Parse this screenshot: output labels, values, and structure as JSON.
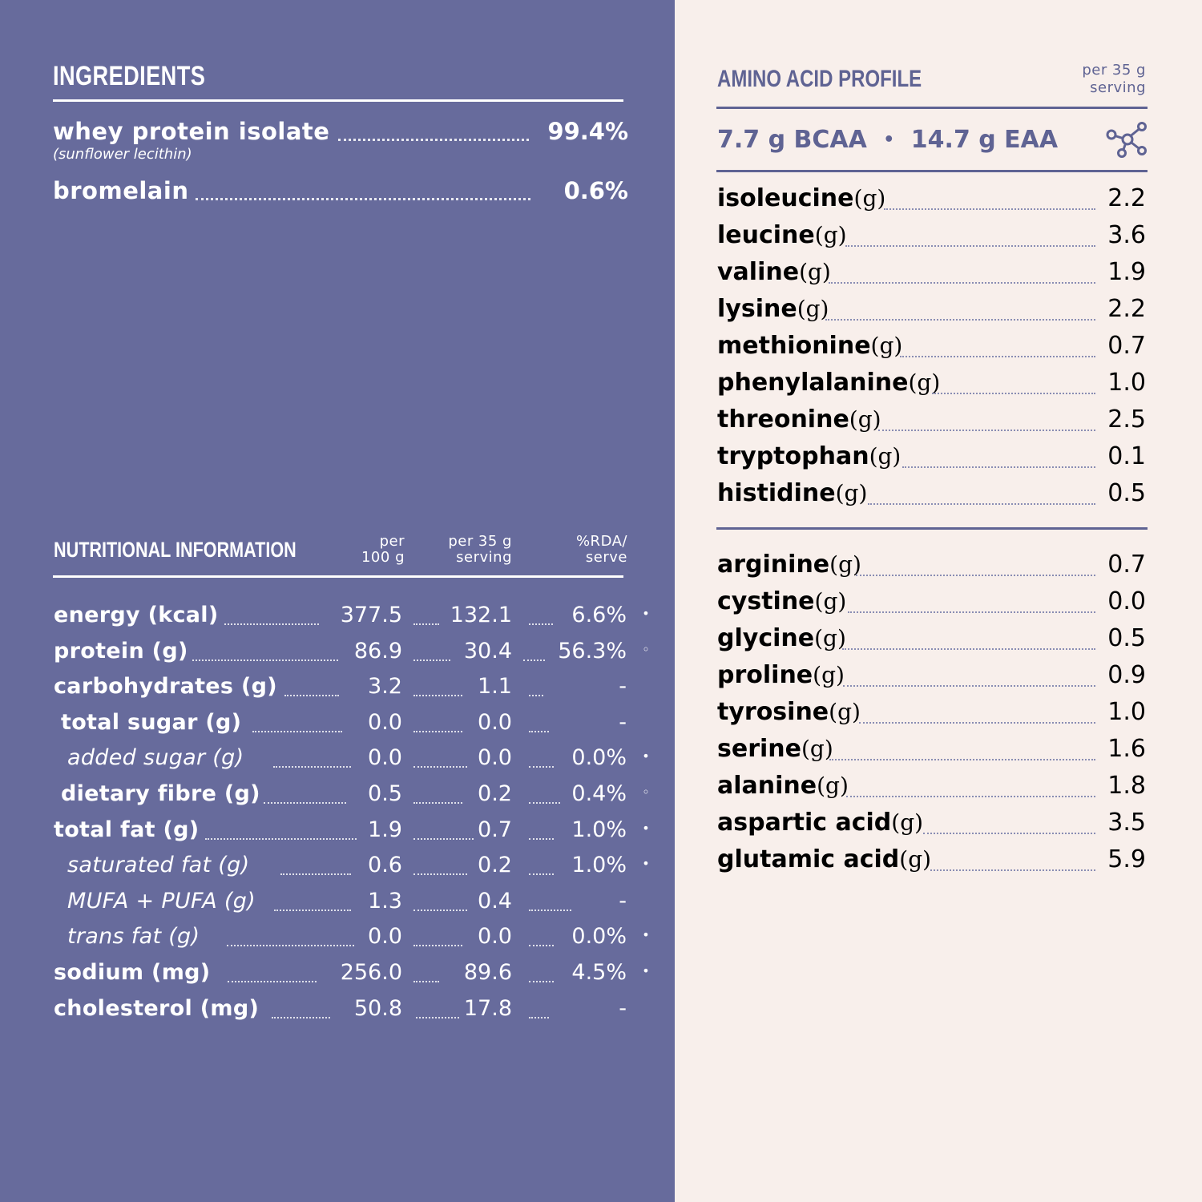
{
  "ingredients": {
    "title": "INGREDIENTS",
    "items": [
      {
        "label": "whey protein isolate",
        "note": "(sunflower lecithin)",
        "value": "99.4%"
      },
      {
        "label": "bromelain",
        "value": "0.6%"
      }
    ]
  },
  "nutrition": {
    "title": "NUTRITIONAL INFORMATION",
    "columns": [
      {
        "line1": "per",
        "line2": "100 g"
      },
      {
        "line1": "per 35 g",
        "line2": "serving"
      },
      {
        "line1": "%RDA/",
        "line2": "serve"
      }
    ],
    "rows": [
      {
        "label": "energy (kcal)",
        "per100": "377.5",
        "serving": "132.1",
        "rda": "6.6%",
        "marker": "•"
      },
      {
        "label": "protein (g)",
        "per100": "86.9",
        "serving": "30.4",
        "rda": "56.3%",
        "marker": "◦"
      },
      {
        "label": "carbohydrates (g)",
        "per100": "3.2",
        "serving": "1.1",
        "rda": "-",
        "marker": ""
      },
      {
        "label": "total sugar (g)",
        "per100": "0.0",
        "serving": "0.0",
        "rda": "-",
        "marker": ""
      },
      {
        "label": "added sugar (g)",
        "per100": "0.0",
        "serving": "0.0",
        "rda": "0.0%",
        "marker": "•"
      },
      {
        "label": "dietary fibre (g)",
        "per100": "0.5",
        "serving": "0.2",
        "rda": "0.4%",
        "marker": "◦"
      },
      {
        "label": "total fat (g)",
        "per100": "1.9",
        "serving": "0.7",
        "rda": "1.0%",
        "marker": "•"
      },
      {
        "label": "saturated fat (g)",
        "per100": "0.6",
        "serving": "0.2",
        "rda": "1.0%",
        "marker": "•"
      },
      {
        "label": "MUFA + PUFA (g)",
        "per100": "1.3",
        "serving": "0.4",
        "rda": "-",
        "marker": ""
      },
      {
        "label": "trans fat (g)",
        "per100": "0.0",
        "serving": "0.0",
        "rda": "0.0%",
        "marker": "•"
      },
      {
        "label": "sodium (mg)",
        "per100": "256.0",
        "serving": "89.6",
        "rda": "4.5%",
        "marker": "•"
      },
      {
        "label": "cholesterol (mg)",
        "per100": "50.8",
        "serving": "17.8",
        "rda": "-",
        "marker": ""
      }
    ]
  },
  "amino": {
    "title": "AMINO ACID PROFILE",
    "serving_line1": "per 35 g",
    "serving_line2": "serving",
    "bcaa": "7.7 g BCAA",
    "separator": "•",
    "eaa": "14.7 g EAA",
    "icon": "molecule-icon",
    "unit": "(g)",
    "essential": [
      {
        "name": "isoleucine",
        "value": "2.2"
      },
      {
        "name": "leucine",
        "value": "3.6"
      },
      {
        "name": "valine",
        "value": "1.9"
      },
      {
        "name": "lysine",
        "value": "2.2"
      },
      {
        "name": "methionine",
        "value": "0.7"
      },
      {
        "name": "phenylalanine",
        "value": "1.0"
      },
      {
        "name": "threonine",
        "value": "2.5"
      },
      {
        "name": "tryptophan",
        "value": "0.1"
      },
      {
        "name": "histidine",
        "value": "0.5"
      }
    ],
    "non_essential": [
      {
        "name": "arginine",
        "value": "0.7"
      },
      {
        "name": "cystine",
        "value": "0.0"
      },
      {
        "name": "glycine",
        "value": "0.5"
      },
      {
        "name": "proline",
        "value": "0.9"
      },
      {
        "name": "tyrosine",
        "value": "1.0"
      },
      {
        "name": "serine",
        "value": "1.6"
      },
      {
        "name": "alanine",
        "value": "1.8"
      },
      {
        "name": "aspartic acid",
        "value": "3.5"
      },
      {
        "name": "glutamic acid",
        "value": "5.9"
      }
    ]
  },
  "colors": {
    "left_panel": "#676b9c",
    "right_panel": "#f8efeb",
    "ink": "#5f6393"
  }
}
